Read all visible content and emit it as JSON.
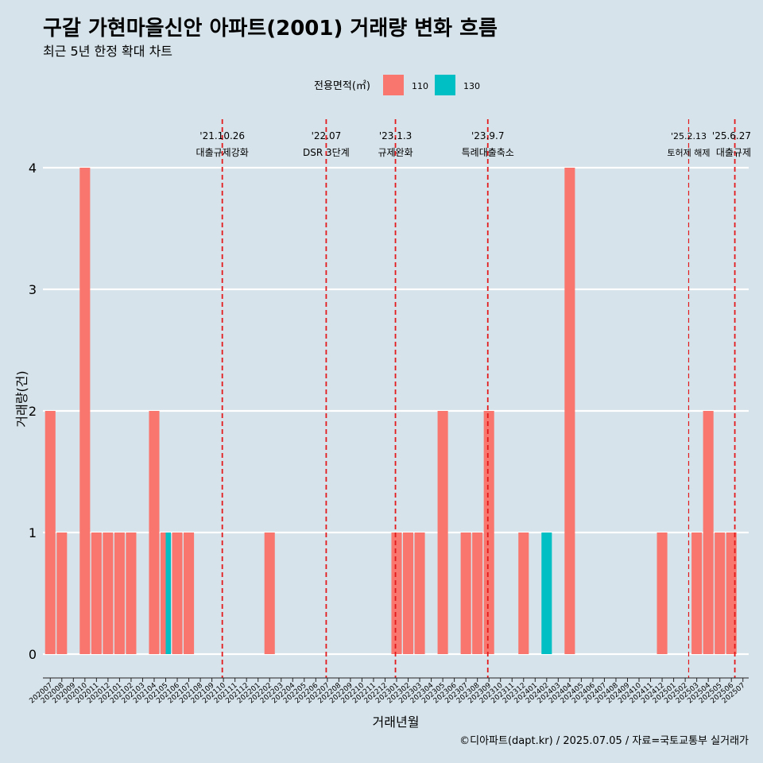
{
  "chart_data": {
    "type": "bar",
    "title": "구갈 가현마을신안 아파트(2001) 거래량 변화 흐름",
    "subtitle": "최근 5년 한정 확대 차트",
    "xlabel": "거래년월",
    "ylabel": "거래량(건)",
    "ylim": [
      0,
      4
    ],
    "yticks": [
      "0",
      "1",
      "2",
      "3",
      "4"
    ],
    "grid": "horizontal",
    "legend": {
      "title": "전용면적(㎡)",
      "position": "top",
      "items": [
        "110",
        "130"
      ]
    },
    "colors": {
      "110": "#F8766D",
      "130": "#00BFC4",
      "event_line": "#e31a1c",
      "background": "#d6e3ea",
      "grid": "#ffffff"
    },
    "categories": [
      "202007",
      "202008",
      "202009",
      "202010",
      "202011",
      "202012",
      "202101",
      "202102",
      "202103",
      "202104",
      "202105",
      "202106",
      "202107",
      "202108",
      "202109",
      "202110",
      "202111",
      "202112",
      "202201",
      "202202",
      "202203",
      "202204",
      "202205",
      "202206",
      "202207",
      "202208",
      "202209",
      "202210",
      "202211",
      "202212",
      "202301",
      "202302",
      "202303",
      "202304",
      "202305",
      "202306",
      "202307",
      "202308",
      "202309",
      "202310",
      "202311",
      "202312",
      "202401",
      "202402",
      "202403",
      "202404",
      "202405",
      "202406",
      "202407",
      "202408",
      "202409",
      "202410",
      "202411",
      "202412",
      "202501",
      "202502",
      "202503",
      "202504",
      "202505",
      "202506",
      "202507"
    ],
    "series": [
      {
        "name": "110",
        "values": [
          2,
          1,
          0,
          4,
          1,
          1,
          1,
          1,
          0,
          2,
          1,
          1,
          1,
          0,
          0,
          0,
          0,
          0,
          0,
          1,
          0,
          0,
          0,
          0,
          0,
          0,
          0,
          0,
          0,
          0,
          1,
          1,
          1,
          0,
          2,
          0,
          1,
          1,
          2,
          0,
          0,
          1,
          0,
          0,
          0,
          4,
          0,
          0,
          0,
          0,
          0,
          0,
          0,
          1,
          0,
          0,
          1,
          2,
          1,
          1,
          0
        ]
      },
      {
        "name": "130",
        "values": [
          0,
          0,
          0,
          0,
          0,
          0,
          0,
          0,
          0,
          0,
          1,
          0,
          0,
          0,
          0,
          0,
          0,
          0,
          0,
          0,
          0,
          0,
          0,
          0,
          0,
          0,
          0,
          0,
          0,
          0,
          0,
          0,
          0,
          0,
          0,
          0,
          0,
          0,
          0,
          0,
          0,
          0,
          0,
          1,
          0,
          0,
          0,
          0,
          0,
          0,
          0,
          0,
          0,
          0,
          0,
          0,
          0,
          0,
          0,
          0,
          0
        ]
      }
    ],
    "events": [
      {
        "date": "'21.10.26",
        "label": "대출규제강화",
        "position": 15.4,
        "emphasis": "strong"
      },
      {
        "date": "'22.07",
        "label": "DSR 3단계",
        "position": 24.4,
        "emphasis": "strong"
      },
      {
        "date": "'23.1.3",
        "label": "규제완화",
        "position": 30.4,
        "emphasis": "strong"
      },
      {
        "date": "'23.9.7",
        "label": "특례대출축소",
        "position": 38.4,
        "emphasis": "strong"
      },
      {
        "date": "'25.2.13",
        "label": "토허제 해제",
        "position": 55.8,
        "emphasis": "light"
      },
      {
        "date": "'25.6.27",
        "label": "대출규제",
        "position": 59.8,
        "emphasis": "strong"
      }
    ]
  },
  "caption": "©디아파트(dapt.kr) / 2025.07.05 / 자료=국토교통부 실거래가"
}
